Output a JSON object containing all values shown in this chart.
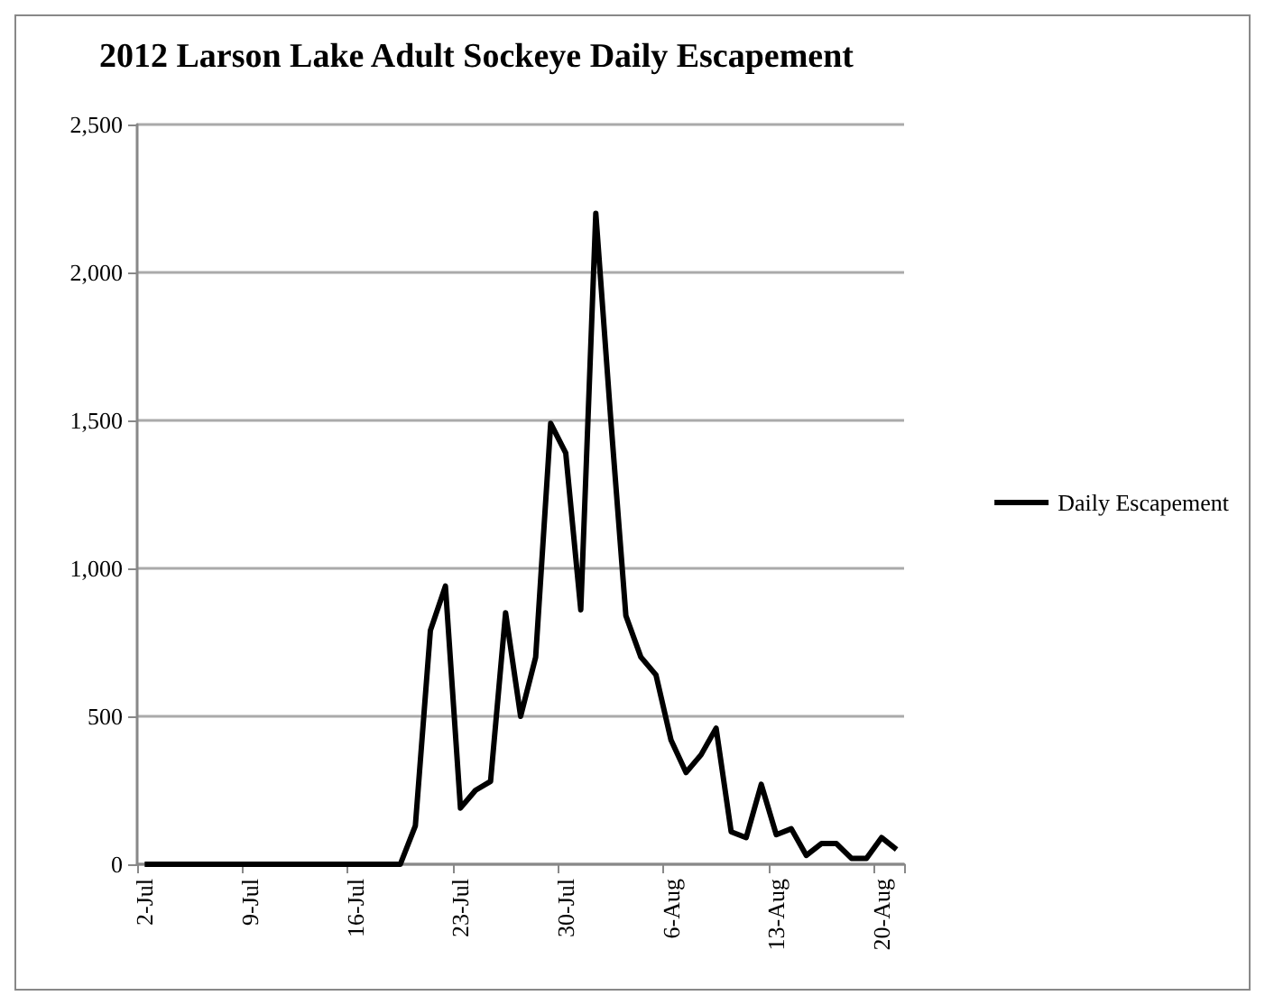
{
  "chart_data": {
    "type": "line",
    "title": "2012 Larson Lake Adult Sockeye Daily Escapement",
    "categories": [
      "2-Jul",
      null,
      null,
      null,
      null,
      null,
      null,
      "9-Jul",
      null,
      null,
      null,
      null,
      null,
      null,
      "16-Jul",
      null,
      null,
      null,
      null,
      null,
      null,
      "23-Jul",
      null,
      null,
      null,
      null,
      null,
      null,
      "30-Jul",
      null,
      null,
      null,
      null,
      null,
      null,
      "6-Aug",
      null,
      null,
      null,
      null,
      null,
      null,
      "13-Aug",
      null,
      null,
      null,
      null,
      null,
      null,
      "20-Aug",
      null
    ],
    "series": [
      {
        "name": "Daily Escapement",
        "color": "#000000",
        "values": [
          0,
          0,
          0,
          0,
          0,
          0,
          0,
          0,
          0,
          0,
          0,
          0,
          0,
          0,
          0,
          0,
          0,
          0,
          130,
          790,
          940,
          190,
          250,
          280,
          850,
          500,
          700,
          1490,
          1390,
          860,
          2200,
          1500,
          840,
          700,
          640,
          420,
          310,
          370,
          460,
          110,
          90,
          270,
          100,
          120,
          30,
          70,
          70,
          20,
          20,
          90,
          50
        ]
      }
    ],
    "ylim": [
      0,
      2500
    ],
    "yticks": [
      0,
      {
        "value": 500,
        "label": "500"
      },
      {
        "value": 1000,
        "label": "1,000"
      },
      {
        "value": 1500,
        "label": "1,500"
      },
      {
        "value": 2000,
        "label": "2,000"
      },
      {
        "value": 2500,
        "label": "2,500"
      }
    ],
    "grid": "y",
    "legend": "right",
    "marker": "none",
    "line_style": "solid"
  }
}
